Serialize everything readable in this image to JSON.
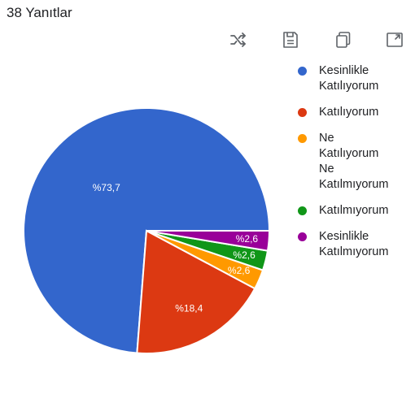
{
  "header": {
    "responses_label": "38 Yanıtlar"
  },
  "toolbar": {
    "icons": [
      "shuffle-icon",
      "save-icon",
      "copy-icon",
      "expand-icon"
    ]
  },
  "chart_data": {
    "type": "pie",
    "title": "",
    "legend_position": "right",
    "slices": [
      {
        "label": "Kesinlikle\nKatılıyorum",
        "value": 73.7,
        "display": "%73,7",
        "color": "#3366cc"
      },
      {
        "label": "Katılıyorum",
        "value": 18.4,
        "display": "%18,4",
        "color": "#dc3912"
      },
      {
        "label": "Ne\nKatılıyorum\nNe\nKatılmıyorum",
        "value": 2.6,
        "display": "%2,6",
        "color": "#ff9900"
      },
      {
        "label": "Katılmıyorum",
        "value": 2.6,
        "display": "%2,6",
        "color": "#109618"
      },
      {
        "label": "Kesinlikle\nKatılmıyorum",
        "value": 2.6,
        "display": "%2,6",
        "color": "#990099"
      }
    ]
  }
}
